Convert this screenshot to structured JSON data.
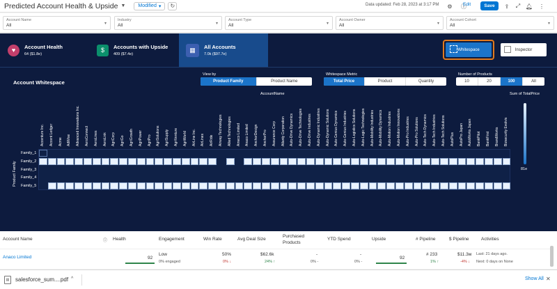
{
  "header": {
    "title": "Predicted Account Health & Upside",
    "modified_label": "Modified",
    "updated_text": "Data updated: Feb 28, 2023 at 3:17 PM",
    "edit_label": "Edit",
    "save_label": "Save"
  },
  "filters": [
    {
      "label": "Account Name",
      "value": "All"
    },
    {
      "label": "Industry",
      "value": "All"
    },
    {
      "label": "Account Type",
      "value": "All"
    },
    {
      "label": "Account Owner",
      "value": "All"
    },
    {
      "label": "Account Cohort",
      "value": "All"
    }
  ],
  "tabs": [
    {
      "title": "Account Health",
      "sub": "64 ($1.8e)",
      "color": "#c23f6b"
    },
    {
      "title": "Accounts with Upside",
      "sub": "409 ($7.4e)",
      "color": "#0b8f6c"
    },
    {
      "title": "All Accounts",
      "sub": "7.0k ($97.7e)",
      "color": "#3c5fb0"
    }
  ],
  "view_toggle": {
    "whitespace": "Whitespace",
    "inspector": "Inspector"
  },
  "panel": {
    "title": "Account Whitespace",
    "view_by_label": "View by",
    "view_by": [
      "Product Family",
      "Product Name"
    ],
    "metric_label": "Whitespace Metric",
    "metric": [
      "Total Price",
      "Product",
      "Quantity"
    ],
    "num_label": "Number of Products",
    "num": [
      "10",
      "20",
      "100",
      "All"
    ]
  },
  "chart_data": {
    "type": "heatmap",
    "xlabel": "AccountName",
    "ylabel": "Product Family",
    "legend_title": "Sum of TotalPrice",
    "legend_max": "81e",
    "rows": [
      "Family_1",
      "Family_2",
      "Family_3",
      "Family_4",
      "Family_5"
    ],
    "columns": [
      "Accenture Inc.",
      "Accent Ledger",
      "Acme",
      "AdWise",
      "Advanced Innovations Inc.",
      "AeroConnect",
      "AeroLines",
      "AeroLink",
      "AgriCorp",
      "AgriGo",
      "AgriGrowth",
      "AgriPower",
      "AgriPro",
      "AgriSolutions",
      "AgriSupply",
      "AgriVenture",
      "AgriWorld",
      "AirLine Inc.",
      "AirLines",
      "AirRide",
      "Airway Technologies",
      "Allied Technologies",
      "Ameco Limited",
      "Anaco Limited",
      "AnchorDesign",
      "AnchorPro",
      "Assurance Corp",
      "Atlanty Corporation",
      "Auto-Drive Dynamics",
      "Auto-Drive Technologies",
      "Auto-Drive Industries",
      "Auto-Dynamic Industries",
      "Auto-Dynamic Solutions",
      "Auto-Genius Dynamics",
      "Auto-Genius Industries",
      "Auto-Logistics Solutions",
      "Auto-Logic Technologies",
      "Auto-Mobility Industries",
      "Auto-Mobility Dynamics",
      "Auto-Motion Industries",
      "Auto-Motion Innovations",
      "Auto-Pro Industries",
      "Auto-Pro Solutions",
      "Auto-Tech Dynamics",
      "Auto-Tech Industries",
      "Auto-Tech Solutions",
      "AutoPlus",
      "AutoPro Japan",
      "AutoWorks Japan",
      "BankPilot",
      "BankFirst",
      "BrandWorks",
      "Bizsecurity Evolvis"
    ],
    "filled": {
      "Family_1": "none",
      "Family_2": "all_except_20_22",
      "Family_3": "none",
      "Family_4": "none",
      "Family_5": "all_except_0"
    }
  },
  "table": {
    "headers": [
      "Account Name",
      "Health",
      "Engagement",
      "Win Rate",
      "Avg Deal Size",
      "Purchased Products",
      "YTD Spend",
      "Upside",
      "# Pipeline",
      "$ Pipeline",
      "Activities"
    ],
    "row": {
      "name": "Anaco Limited",
      "health": "92",
      "engagement": "Low",
      "engagement_sub": "0% engaged",
      "win_rate": "50%",
      "win_rate_sub": "0% ↓",
      "avg_deal": "$62.6k",
      "avg_deal_sub": "24% ↑",
      "purchased": "-",
      "purchased_sub": "0% -",
      "ytd": "-",
      "ytd_sub": "0% -",
      "upside": "92",
      "pipeline_num": "# 233",
      "pipeline_num_sub": "1% ↑",
      "pipeline_val": "$11.3м",
      "pipeline_val_sub": "-4% ↓",
      "activities_last": "Last: 21 days ago.",
      "activities_next": "Next: 0 days on None"
    }
  },
  "download": {
    "file": "salesforce_sum....pdf",
    "show_all": "Show All"
  }
}
